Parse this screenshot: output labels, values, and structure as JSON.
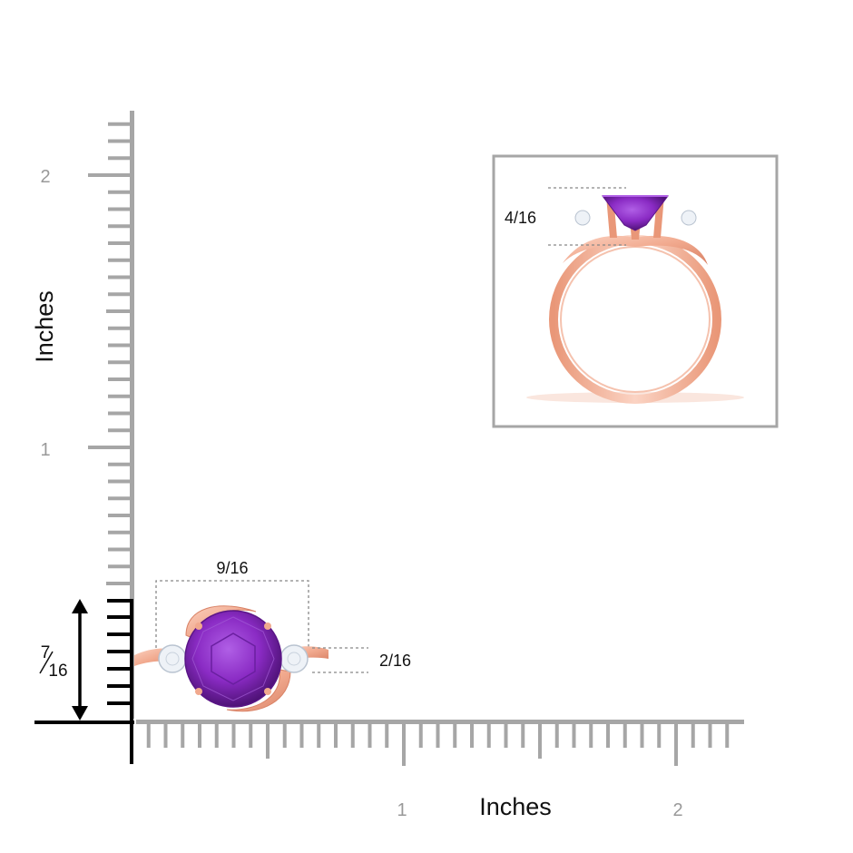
{
  "axes": {
    "y_label": "Inches",
    "x_label": "Inches",
    "y_ticks": [
      "1",
      "2"
    ],
    "x_ticks": [
      "1",
      "2"
    ]
  },
  "dimensions": {
    "width": "9/16",
    "height_whole": "7",
    "height_frac": "16",
    "side_stone": "2/16",
    "side_view_height": "4/16"
  },
  "colors": {
    "ruler": "#a6a6a6",
    "axis_black": "#000000",
    "metal": "#f1a98e",
    "metal_dark": "#d98266",
    "gem": "#8a2bc4",
    "gem_dark": "#5a1587",
    "diamond": "#eef2f7",
    "dash": "#888888",
    "frame": "#a6a6a6"
  }
}
